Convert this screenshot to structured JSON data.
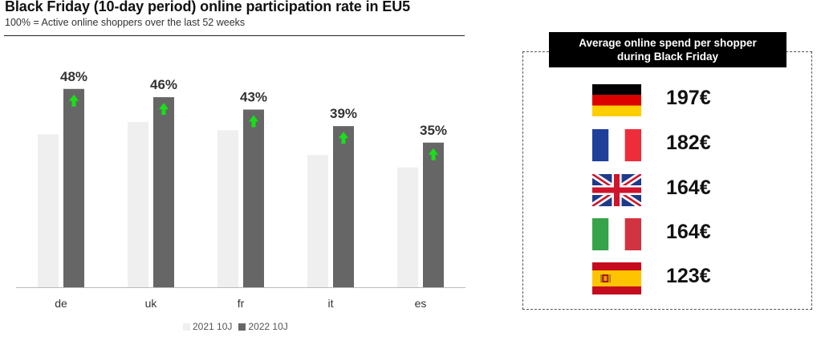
{
  "header": {
    "title": "Black Friday (10-day period) online participation rate in EU5",
    "subtitle": "100% =  Active online shoppers over the last 52 weeks"
  },
  "colors": {
    "series_2021": "#efefef",
    "series_2022": "#666666",
    "up_arrow": "#18e018",
    "axis": "#bbbbbb"
  },
  "chart_data": {
    "type": "bar",
    "title": "Black Friday (10-day period) online participation rate in EU5",
    "subtitle": "100% =  Active online shoppers over the last 52 weeks",
    "categories": [
      "de",
      "uk",
      "fr",
      "it",
      "es"
    ],
    "series": [
      {
        "name": "2021 10J",
        "values": [
          37,
          40,
          38,
          32,
          29
        ]
      },
      {
        "name": "2022 10J",
        "values": [
          48,
          46,
          43,
          39,
          35
        ],
        "labels": [
          "48%",
          "46%",
          "43%",
          "39%",
          "35%"
        ]
      }
    ],
    "annotations": "green up-arrow inside each 2022 bar",
    "ylim": [
      0,
      52
    ],
    "grid": false,
    "legend_position": "bottom"
  },
  "spend_panel": {
    "title_line1": "Average online spend per shopper",
    "title_line2": "during Black Friday",
    "rows": [
      {
        "flag": "germany-flag",
        "amount": "197€"
      },
      {
        "flag": "france-flag",
        "amount": "182€"
      },
      {
        "flag": "uk-flag",
        "amount": "164€"
      },
      {
        "flag": "italy-flag",
        "amount": "164€"
      },
      {
        "flag": "spain-flag",
        "amount": "123€"
      }
    ]
  }
}
